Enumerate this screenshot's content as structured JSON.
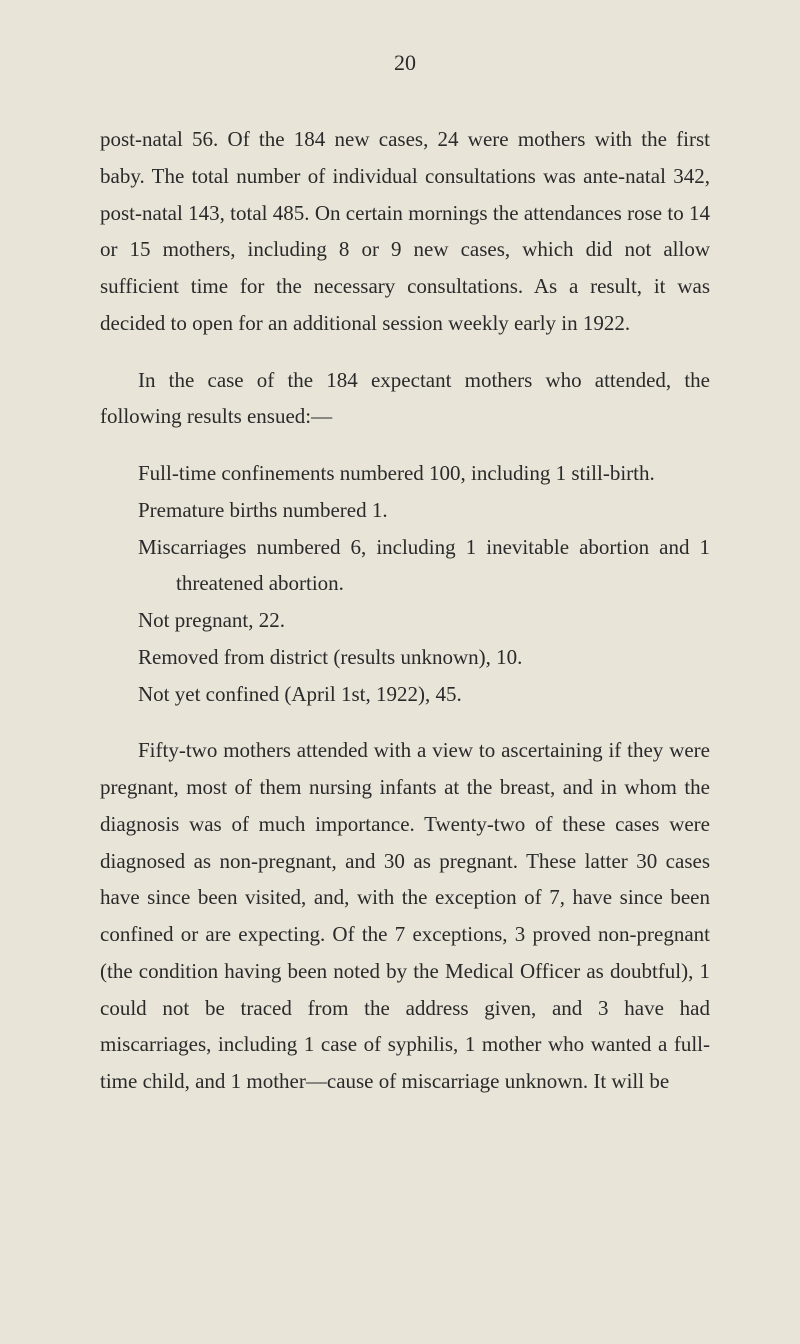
{
  "page": {
    "number": "20",
    "background_color": "#e8e4d8",
    "text_color": "#2a2a2a",
    "font_family": "Georgia, Times New Roman, serif",
    "body_fontsize": 21,
    "line_height": 1.75
  },
  "paragraphs": {
    "p1": "post-natal 56. Of the 184 new cases, 24 were mothers with the first baby. The total number of individual consultations was ante-natal 342, post-natal 143, total 485. On certain mornings the attendances rose to 14 or 15 mothers, including 8 or 9 new cases, which did not allow sufficient time for the necessary consultations. As a result, it was decided to open for an additional session weekly early in 1922.",
    "p2": "In the case of the 184 expectant mothers who attended, the following results ensued:—",
    "p3": "Fifty-two mothers attended with a view to ascertaining if they were pregnant, most of them nursing infants at the breast, and in whom the diagnosis was of much importance. Twenty-two of these cases were diagnosed as non-pregnant, and 30 as pregnant. These latter 30 cases have since been visited, and, with the exception of 7, have since been confined or are expecting. Of the 7 exceptions, 3 proved non-pregnant (the condition having been noted by the Medical Officer as doubtful), 1 could not be traced from the address given, and 3 have had miscarriages, including 1 case of syphilis, 1 mother who wanted a full-time child, and 1 mother—cause of miscarriage unknown. It will be"
  },
  "list": {
    "item1": "Full-time confinements numbered 100, including 1 still-birth.",
    "item2": "Premature births numbered 1.",
    "item3": "Miscarriages numbered 6, including 1 inevitable abortion and 1 threatened abortion.",
    "item4": "Not pregnant, 22.",
    "item5": "Removed from district (results unknown), 10.",
    "item6": "Not yet confined (April 1st, 1922), 45."
  }
}
